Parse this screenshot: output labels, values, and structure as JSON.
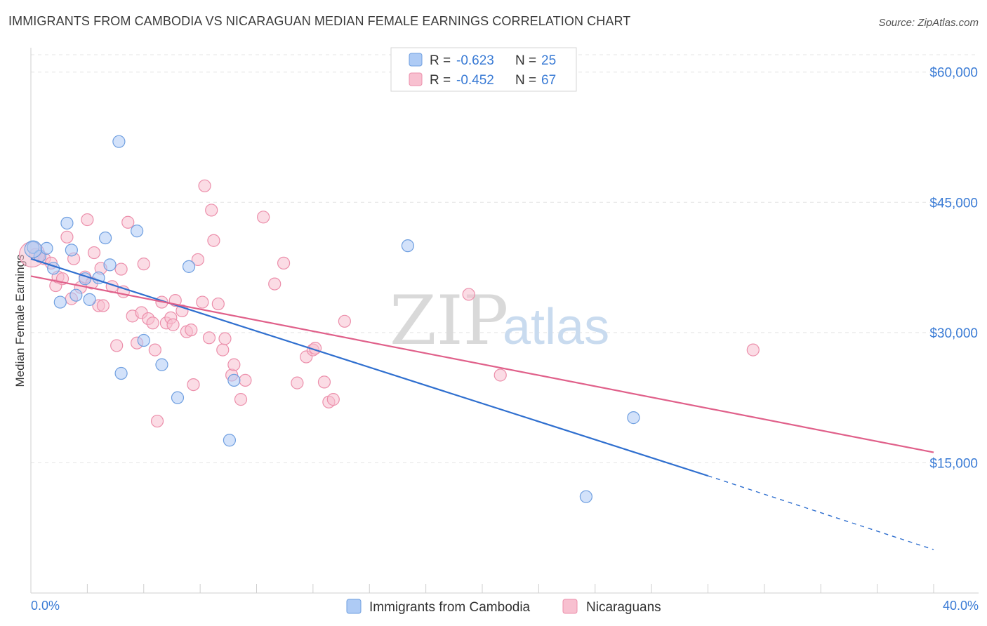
{
  "header": {
    "title": "IMMIGRANTS FROM CAMBODIA VS NICARAGUAN MEDIAN FEMALE EARNINGS CORRELATION CHART",
    "source": "Source: ZipAtlas.com"
  },
  "watermark": {
    "part1": "ZIP",
    "part2": "atlas"
  },
  "legend": {
    "r_label": "R =",
    "n_label": "N =",
    "entries": [
      {
        "r": "-0.623",
        "n": "25",
        "color": "#aecbf5"
      },
      {
        "r": "-0.452",
        "n": "67",
        "color": "#f8c0d0"
      }
    ]
  },
  "bottom_legend": [
    {
      "label": "Immigrants from Cambodia"
    },
    {
      "label": "Nicaraguans"
    }
  ],
  "colors": {
    "blue_fill": "#aecbf5",
    "blue_stroke": "#6f9fe0",
    "blue_line": "#2f6fcf",
    "pink_fill": "#f8c0d0",
    "pink_stroke": "#ec8fab",
    "pink_line": "#e0608a",
    "grid": "#e4e4e4",
    "tick_text": "#3a7bd5"
  },
  "chart_data": {
    "type": "scatter",
    "title": "IMMIGRANTS FROM CAMBODIA VS NICARAGUAN MEDIAN FEMALE EARNINGS CORRELATION CHART",
    "xlabel": "",
    "ylabel": "Median Female Earnings",
    "xlim": [
      0,
      40
    ],
    "ylim": [
      0,
      62000
    ],
    "x_tick_labels": [
      "0.0%",
      "40.0%"
    ],
    "y_ticks": [
      15000,
      30000,
      45000,
      60000
    ],
    "y_tick_labels": [
      "$15,000",
      "$30,000",
      "$45,000",
      "$60,000"
    ],
    "grid": true,
    "legend_position": "top-center",
    "series": [
      {
        "name": "Immigrants from Cambodia",
        "r": -0.623,
        "n": 25,
        "trend": {
          "x0": 0,
          "y0": 38500,
          "x1": 30,
          "y1": 13500,
          "dash_to_x": 40,
          "dash_to_y": 5000
        },
        "points": [
          [
            0.1,
            39800
          ],
          [
            0.4,
            38800
          ],
          [
            0.7,
            39700
          ],
          [
            1.0,
            37400
          ],
          [
            1.3,
            33500
          ],
          [
            1.6,
            42600
          ],
          [
            1.8,
            39500
          ],
          [
            2.0,
            34300
          ],
          [
            2.4,
            36200
          ],
          [
            2.6,
            33800
          ],
          [
            3.0,
            36300
          ],
          [
            3.3,
            40900
          ],
          [
            3.5,
            37800
          ],
          [
            3.9,
            52000
          ],
          [
            4.0,
            25300
          ],
          [
            4.7,
            41700
          ],
          [
            5.0,
            29100
          ],
          [
            5.8,
            26300
          ],
          [
            6.5,
            22500
          ],
          [
            7.0,
            37600
          ],
          [
            9.0,
            24500
          ],
          [
            8.8,
            17600
          ],
          [
            16.7,
            40000
          ],
          [
            26.7,
            20200
          ],
          [
            24.6,
            11100
          ]
        ]
      },
      {
        "name": "Nicaraguans",
        "r": -0.452,
        "n": 67,
        "trend": {
          "x0": 0,
          "y0": 36500,
          "x1": 40,
          "y1": 16200
        },
        "points": [
          [
            0.2,
            39000
          ],
          [
            0.4,
            38800
          ],
          [
            0.6,
            38500
          ],
          [
            0.9,
            38000
          ],
          [
            1.1,
            35400
          ],
          [
            1.2,
            36400
          ],
          [
            1.4,
            36200
          ],
          [
            1.6,
            41000
          ],
          [
            1.8,
            33900
          ],
          [
            1.9,
            38500
          ],
          [
            2.2,
            35200
          ],
          [
            2.4,
            36400
          ],
          [
            2.5,
            43000
          ],
          [
            2.7,
            35700
          ],
          [
            2.8,
            39200
          ],
          [
            3.0,
            33100
          ],
          [
            3.1,
            37400
          ],
          [
            3.2,
            33100
          ],
          [
            3.6,
            35300
          ],
          [
            3.8,
            28500
          ],
          [
            4.0,
            37300
          ],
          [
            4.1,
            34700
          ],
          [
            4.3,
            42700
          ],
          [
            4.5,
            31900
          ],
          [
            4.7,
            28800
          ],
          [
            4.9,
            32300
          ],
          [
            5.0,
            37900
          ],
          [
            5.2,
            31600
          ],
          [
            5.4,
            31100
          ],
          [
            5.5,
            28000
          ],
          [
            5.6,
            19800
          ],
          [
            5.8,
            33500
          ],
          [
            6.0,
            31100
          ],
          [
            6.2,
            31700
          ],
          [
            6.3,
            30900
          ],
          [
            6.4,
            33700
          ],
          [
            6.7,
            32500
          ],
          [
            6.9,
            30100
          ],
          [
            7.1,
            30300
          ],
          [
            7.2,
            24000
          ],
          [
            7.4,
            38400
          ],
          [
            7.6,
            33500
          ],
          [
            7.7,
            46900
          ],
          [
            7.9,
            29400
          ],
          [
            8.0,
            44100
          ],
          [
            8.1,
            40600
          ],
          [
            8.3,
            33300
          ],
          [
            8.5,
            28000
          ],
          [
            8.6,
            29300
          ],
          [
            8.9,
            25100
          ],
          [
            9.0,
            26300
          ],
          [
            9.3,
            22300
          ],
          [
            9.5,
            24500
          ],
          [
            10.3,
            43300
          ],
          [
            10.8,
            35600
          ],
          [
            11.2,
            38000
          ],
          [
            11.8,
            24200
          ],
          [
            12.2,
            27200
          ],
          [
            12.5,
            28000
          ],
          [
            12.6,
            28200
          ],
          [
            13.0,
            24300
          ],
          [
            13.2,
            22000
          ],
          [
            13.4,
            22300
          ],
          [
            13.9,
            31300
          ],
          [
            19.4,
            34400
          ],
          [
            20.8,
            25100
          ],
          [
            32.0,
            28000
          ]
        ]
      }
    ]
  }
}
